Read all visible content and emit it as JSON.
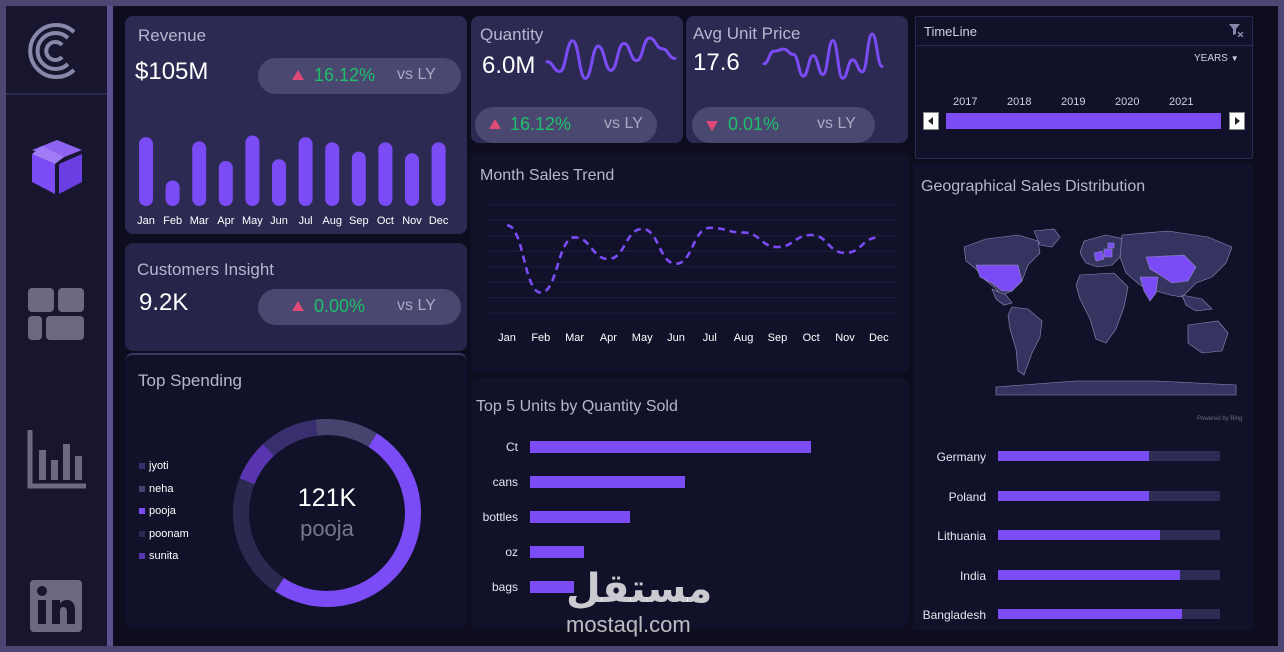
{
  "colors": {
    "accent": "#7b4cf5",
    "up_green": "#1fbf6a",
    "arrow_red": "#e04a76",
    "bg": "#121226"
  },
  "sidebar": {
    "items": [
      {
        "icon": "logo-icon"
      },
      {
        "icon": "box-icon"
      },
      {
        "icon": "dashboard-grid-icon"
      },
      {
        "icon": "bar-chart-icon"
      },
      {
        "icon": "linkedin-icon"
      }
    ]
  },
  "revenue": {
    "title": "Revenue",
    "value": "$105M",
    "change": "16.12%",
    "vs": "vs LY",
    "direction": "up"
  },
  "quantity": {
    "title": "Quantity",
    "value": "6.0M",
    "change": "16.12%",
    "vs": "vs LY",
    "direction": "up"
  },
  "avg_price": {
    "title": "Avg Unit Price",
    "value": "17.6",
    "change": "0.01%",
    "vs": "vs LY",
    "direction": "down"
  },
  "customers": {
    "title": "Customers Insight",
    "value": "9.2K",
    "change": "0.00%",
    "vs": "vs LY",
    "direction": "up"
  },
  "timeline": {
    "title": "TimeLine",
    "period": "YEARS",
    "years": [
      "2017",
      "2018",
      "2019",
      "2020",
      "2021"
    ],
    "selected_fraction": 1.0
  },
  "trend": {
    "title": "Month Sales Trend"
  },
  "top_spending": {
    "title": "Top Spending",
    "center_value": "121K",
    "center_label": "pooja"
  },
  "top_units": {
    "title": "Top 5 Units by  Quantity Sold"
  },
  "geo": {
    "title": "Geographical Sales Distribution",
    "powered": "Powered by Bing",
    "highlighted": [
      "United States",
      "Germany",
      "Poland",
      "Lithuania",
      "India",
      "China"
    ]
  },
  "watermark": {
    "arabic": "مستقل",
    "latin": "mostaql.com"
  },
  "chart_data": [
    {
      "id": "revenue-bars",
      "type": "bar",
      "categories": [
        "Jan",
        "Feb",
        "Mar",
        "Apr",
        "May",
        "Jun",
        "Jul",
        "Aug",
        "Sep",
        "Oct",
        "Nov",
        "Dec"
      ],
      "values": [
        81,
        30,
        76,
        53,
        83,
        55,
        81,
        75,
        64,
        75,
        62,
        75
      ]
    },
    {
      "id": "quantity-sparkline",
      "type": "line",
      "values": [
        56,
        38,
        95,
        25,
        85,
        40,
        90,
        58,
        100,
        80,
        62
      ]
    },
    {
      "id": "avg-price-sparkline",
      "type": "line",
      "values": [
        45,
        68,
        72,
        62,
        22,
        60,
        25,
        88,
        18,
        52,
        30,
        100,
        40
      ]
    },
    {
      "id": "month-sales-trend",
      "type": "line",
      "categories": [
        "Jan",
        "Feb",
        "Mar",
        "Apr",
        "May",
        "Jun",
        "Jul",
        "Aug",
        "Sep",
        "Oct",
        "Nov",
        "Dec"
      ],
      "values": [
        9.3,
        3.7,
        8.3,
        6.5,
        9.0,
        6.1,
        9.1,
        8.7,
        7.5,
        8.5,
        7.0,
        8.3
      ],
      "ylim": [
        2,
        11
      ]
    },
    {
      "id": "top-spending-donut",
      "type": "pie",
      "categories": [
        "jyoti",
        "neha",
        "pooja",
        "poonam",
        "sunita"
      ],
      "values": [
        24,
        26,
        121,
        52,
        17
      ]
    },
    {
      "id": "top-5-units",
      "type": "bar",
      "orientation": "horizontal",
      "categories": [
        "Ct",
        "cans",
        "bottles",
        "oz",
        "bags"
      ],
      "values": [
        280,
        154,
        100,
        54,
        44
      ]
    },
    {
      "id": "geo-bars",
      "type": "bar",
      "orientation": "horizontal",
      "categories": [
        "Germany",
        "Poland",
        "Lithuania",
        "India",
        "Bangladesh"
      ],
      "values": [
        0.68,
        0.68,
        0.73,
        0.82,
        0.83
      ]
    }
  ]
}
